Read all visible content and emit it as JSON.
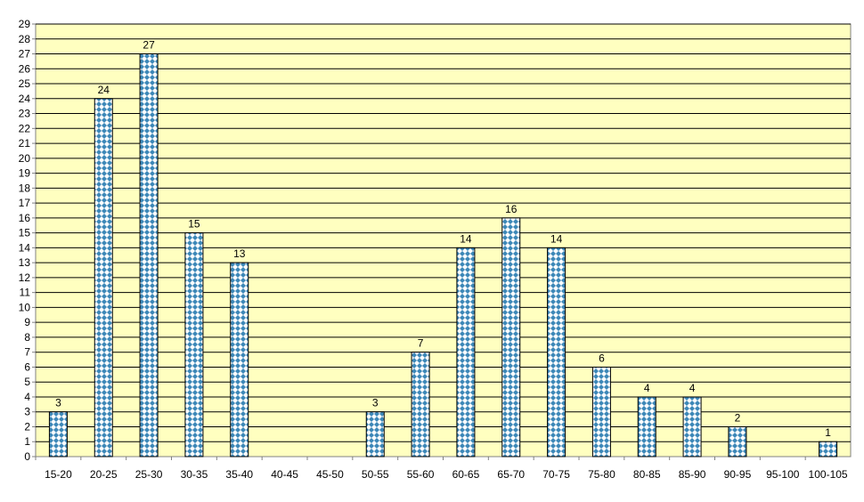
{
  "chart_data": {
    "type": "bar",
    "categories": [
      "15-20",
      "20-25",
      "25-30",
      "30-35",
      "35-40",
      "40-45",
      "45-50",
      "50-55",
      "55-60",
      "60-65",
      "65-70",
      "70-75",
      "75-80",
      "80-85",
      "85-90",
      "90-95",
      "95-100",
      "100-105"
    ],
    "values": [
      3,
      24,
      27,
      15,
      13,
      null,
      null,
      3,
      7,
      14,
      16,
      14,
      6,
      4,
      4,
      2,
      null,
      1
    ],
    "color": "#3d88b8",
    "ylim": [
      0,
      29
    ],
    "yticks": [
      0,
      1,
      2,
      3,
      4,
      5,
      6,
      7,
      8,
      9,
      10,
      11,
      12,
      13,
      14,
      15,
      16,
      17,
      18,
      19,
      20,
      21,
      22,
      23,
      24,
      25,
      26,
      27,
      28,
      29
    ],
    "grid": true
  }
}
